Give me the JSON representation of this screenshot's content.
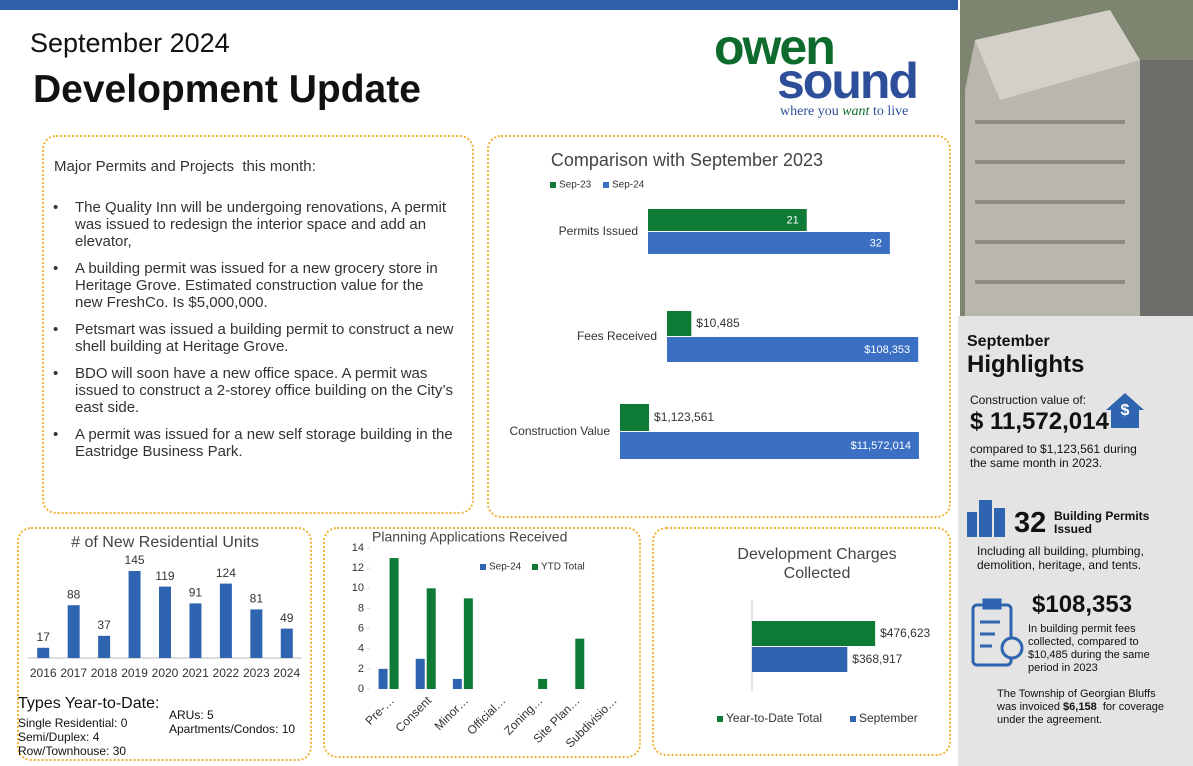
{
  "header": {
    "month": "September 2024",
    "title": "Development Update",
    "logo": {
      "line1": "owen",
      "line2": "sound",
      "tagline_pre": "where you ",
      "tagline_em": "want",
      "tagline_post": " to live"
    }
  },
  "projects": {
    "heading": "Major Permits and Projects  this month:",
    "items": [
      "The Quality Inn will be undergoing renovations,  A permit was issued to redesign the interior space and add an elevator,",
      "A building permit was issued for a new grocery store in Heritage Grove.  Estimated construction value for the new FreshCo. Is  $5,000,000.",
      "Petsmart was issued a building permit to construct a new shell building at Heritage Grove.",
      "BDO will soon have a new office space.  A permit was issued to construct a 2-storey office building on the City’s east side.",
      "A permit was issued for a new self storage building in  the Eastridge Business Park."
    ]
  },
  "chart_data": [
    {
      "type": "bar",
      "orientation": "horizontal",
      "title": "Comparison with September 2023",
      "categories": [
        "Permits Issued",
        "Fees Received",
        "Construction Value"
      ],
      "series": [
        {
          "name": "Sep-23",
          "color": "#0d7a35",
          "values": [
            21,
            10485,
            1123561
          ],
          "value_labels": [
            "21",
            "$10,485",
            "$1,123,561"
          ]
        },
        {
          "name": "Sep-24",
          "color": "#3a6fc4",
          "values": [
            32,
            108353,
            11572014
          ],
          "value_labels": [
            "32",
            "$108,353",
            "$11,572,014"
          ]
        }
      ],
      "xlims": [
        [
          0,
          34
        ],
        [
          0,
          110000
        ],
        [
          0,
          12000000
        ]
      ],
      "legend": "top-left"
    },
    {
      "type": "bar",
      "orientation": "vertical",
      "title": "# of New Residential Units",
      "categories": [
        "2016",
        "2017",
        "2018",
        "2019",
        "2020",
        "2021",
        "2022",
        "2023",
        "2024"
      ],
      "values": [
        17,
        88,
        37,
        145,
        119,
        91,
        124,
        81,
        49
      ],
      "color": "#2e64b0",
      "ylim": [
        0,
        160
      ],
      "data_labels": true
    },
    {
      "type": "bar",
      "orientation": "vertical",
      "title": "Planning Applications Received",
      "categories": [
        "Pre-…",
        "Consent",
        "Minor…",
        "Official…",
        "Zoning…",
        "Site Plan…",
        "Subdivisio…"
      ],
      "series": [
        {
          "name": "Sep-24",
          "color": "#2e64b0",
          "values": [
            2,
            3,
            1,
            0,
            0,
            0,
            0
          ]
        },
        {
          "name": "YTD Total",
          "color": "#0d7a35",
          "values": [
            13,
            10,
            9,
            0,
            1,
            5,
            0
          ]
        }
      ],
      "ylim": [
        0,
        14
      ],
      "yticks": [
        0,
        2,
        4,
        6,
        8,
        10,
        12,
        14
      ],
      "legend": "top"
    },
    {
      "type": "bar",
      "orientation": "horizontal",
      "title": "Development Charges Collected",
      "categories": [
        null
      ],
      "series": [
        {
          "name": "Year-to-Date Total",
          "color": "#0d7a35",
          "values": [
            476623
          ],
          "value_labels": [
            "$476,623"
          ]
        },
        {
          "name": "September",
          "color": "#2e64b0",
          "values": [
            368917
          ],
          "value_labels": [
            "$368,917"
          ]
        }
      ],
      "xlim": [
        0,
        600000
      ],
      "legend": "bottom"
    }
  ],
  "types_ytd": {
    "heading": "Types Year-to-Date:",
    "items": [
      "Single Residential: 0",
      "Semi/Duplex: 4",
      "Row/Townhouse: 30",
      "ARUs: 5",
      "Apartments/Condos: 10"
    ]
  },
  "highlights": {
    "kicker": "September",
    "title": "Highlights",
    "construction_label": "Construction value of:",
    "construction_value": "$ 11,572,014",
    "construction_note": "compared to $1,123,561 during the same month in 2023.",
    "permits_count": 32,
    "permits_label": "Building Permits Issued",
    "permits_note": "Including all building, plumbing, demolition, heritage, and tents.",
    "fees_value": "$108,353",
    "fees_note": "In building permit fees collected, compared to $10,485  during the same period in 2023",
    "georgian_pre": "The Township of Georgian Bluffs was invoiced ",
    "georgian_amount": "$6,158",
    "georgian_post": "  for coverage under the agreement."
  }
}
